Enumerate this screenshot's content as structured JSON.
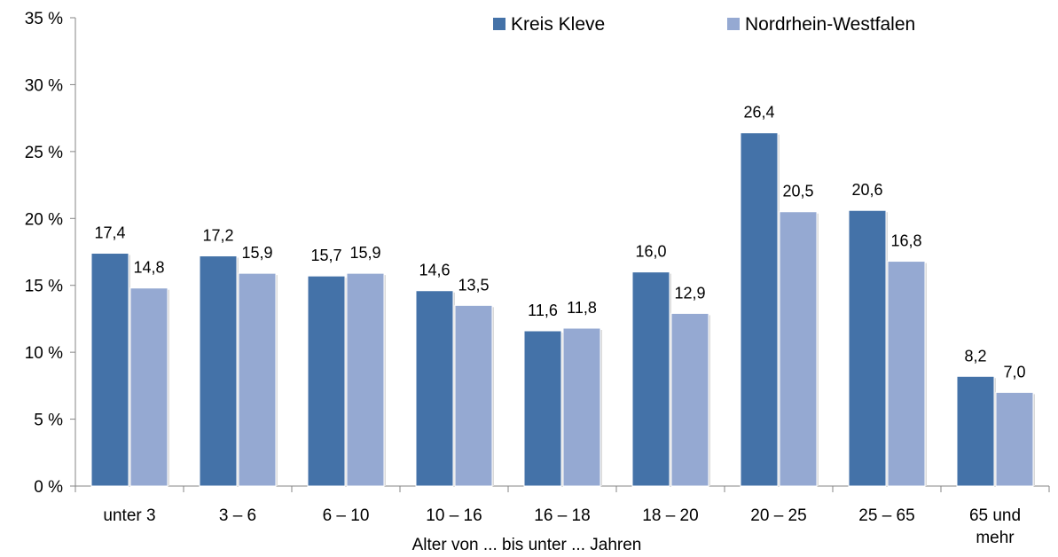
{
  "chart_data": {
    "type": "bar",
    "categories": [
      "unter 3",
      "3 –  6",
      "6 – 10",
      "10 – 16",
      "16 – 18",
      "18 – 20",
      "20 – 25",
      "25 – 65",
      "65 und mehr"
    ],
    "category_lines": [
      [
        "unter 3"
      ],
      [
        "3 –  6"
      ],
      [
        "6 – 10"
      ],
      [
        "10 – 16"
      ],
      [
        "16 – 18"
      ],
      [
        "18 – 20"
      ],
      [
        "20 – 25"
      ],
      [
        "25 – 65"
      ],
      [
        "65 und",
        "mehr"
      ]
    ],
    "series": [
      {
        "name": "Kreis Kleve",
        "color": "#4472A8",
        "values": [
          17.4,
          17.2,
          15.7,
          14.6,
          11.6,
          16.0,
          26.4,
          20.6,
          8.2
        ],
        "labels": [
          "17,4",
          "17,2",
          "15,7",
          "14,6",
          "11,6",
          "16,0",
          "26,4",
          "20,6",
          "8,2"
        ]
      },
      {
        "name": "Nordrhein-Westfalen",
        "color": "#95A9D2",
        "values": [
          14.8,
          15.9,
          15.9,
          13.5,
          11.8,
          12.9,
          20.5,
          16.8,
          7.0
        ],
        "labels": [
          "14,8",
          "15,9",
          "15,9",
          "13,5",
          "11,8",
          "12,9",
          "20,5",
          "16,8",
          "7,0"
        ]
      }
    ],
    "xlabel": "Alter von ... bis unter ... Jahren",
    "ylabel": "",
    "ylim": [
      0,
      35
    ],
    "yticks": [
      0,
      5,
      10,
      15,
      20,
      25,
      30,
      35
    ],
    "ytick_labels": [
      "0 %",
      "5 %",
      "10 %",
      "15 %",
      "20 %",
      "25 %",
      "30 %",
      "35 %"
    ],
    "grid": false,
    "legend_position": "top-right"
  }
}
